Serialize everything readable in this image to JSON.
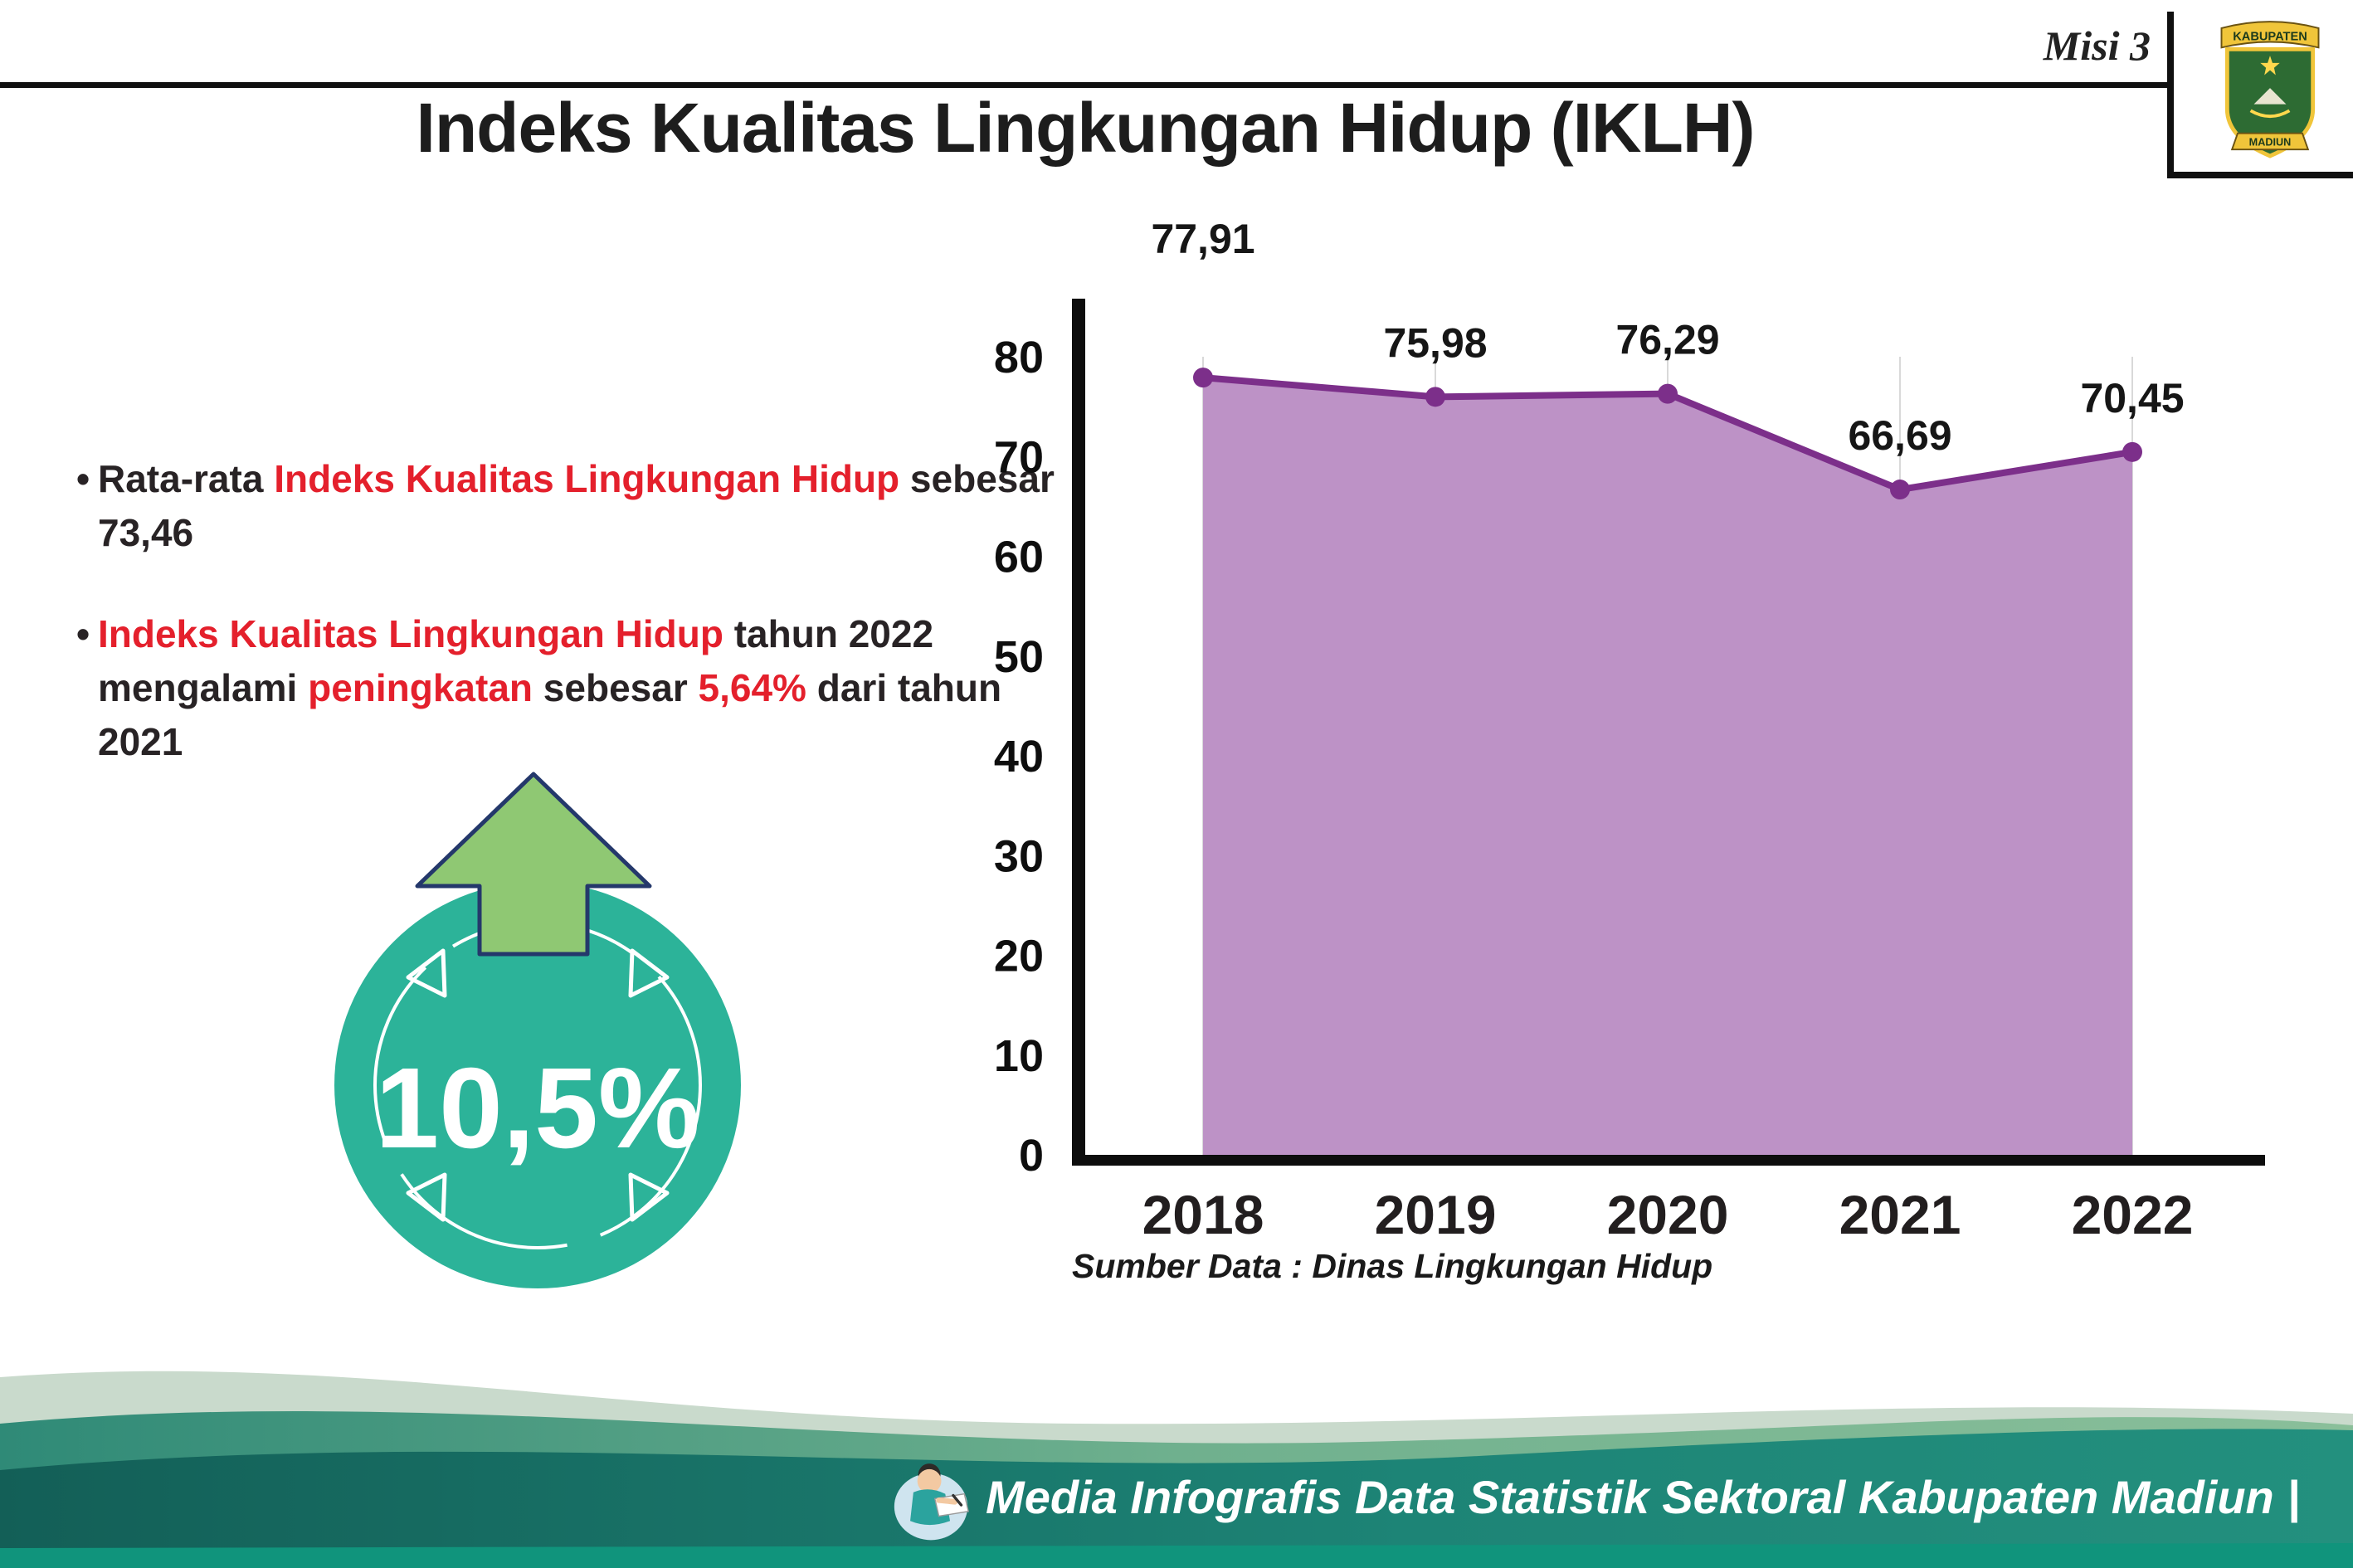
{
  "header": {
    "misi_label": "Misi 3",
    "title": "Indeks Kualitas Lingkungan Hidup (IKLH)",
    "logo": {
      "top_text": "KABUPATEN",
      "bottom_text": "MADIUN"
    }
  },
  "bullets": {
    "marker": "•",
    "b1": {
      "pre": "Rata-rata ",
      "highlight": "Indeks Kualitas Lingkungan Hidup",
      "post": " sebesar 73,46"
    },
    "b2": {
      "highlight1": "Indeks Kualitas Lingkungan Hidup",
      "mid1": " tahun 2022 mengalami ",
      "highlight2": "peningkatan",
      "mid2": " sebesar ",
      "highlight3": "5,64%",
      "post": " dari tahun 2021"
    }
  },
  "badge": {
    "value": "10,5%"
  },
  "footer": {
    "credit": "Media Infografis Data Statistik Sektoral Kabupaten Madiun |"
  },
  "colors": {
    "red": "#e4202c",
    "area_fill": "#bd92c6",
    "line": "#7c2f8a",
    "badge_teal": "#2cb399",
    "arrow_green": "#8fc873",
    "grid": "#d9d9d9",
    "axis": "#0d0d0d"
  },
  "chart_data": {
    "type": "area",
    "categories": [
      "2018",
      "2019",
      "2020",
      "2021",
      "2022"
    ],
    "values": [
      77.91,
      75.98,
      76.29,
      66.69,
      70.45
    ],
    "value_labels": [
      "77,91",
      "75,98",
      "76,29",
      "66,69",
      "70,45"
    ],
    "title": "Indeks Kualitas Lingkungan Hidup (IKLH)",
    "xlabel": "",
    "ylabel": "",
    "ylim": [
      0,
      80
    ],
    "yticks": [
      0,
      10,
      20,
      30,
      40,
      50,
      60,
      70,
      80
    ],
    "grid": true,
    "legend": false,
    "source_note": "Sumber Data : Dinas Lingkungan Hidup"
  }
}
